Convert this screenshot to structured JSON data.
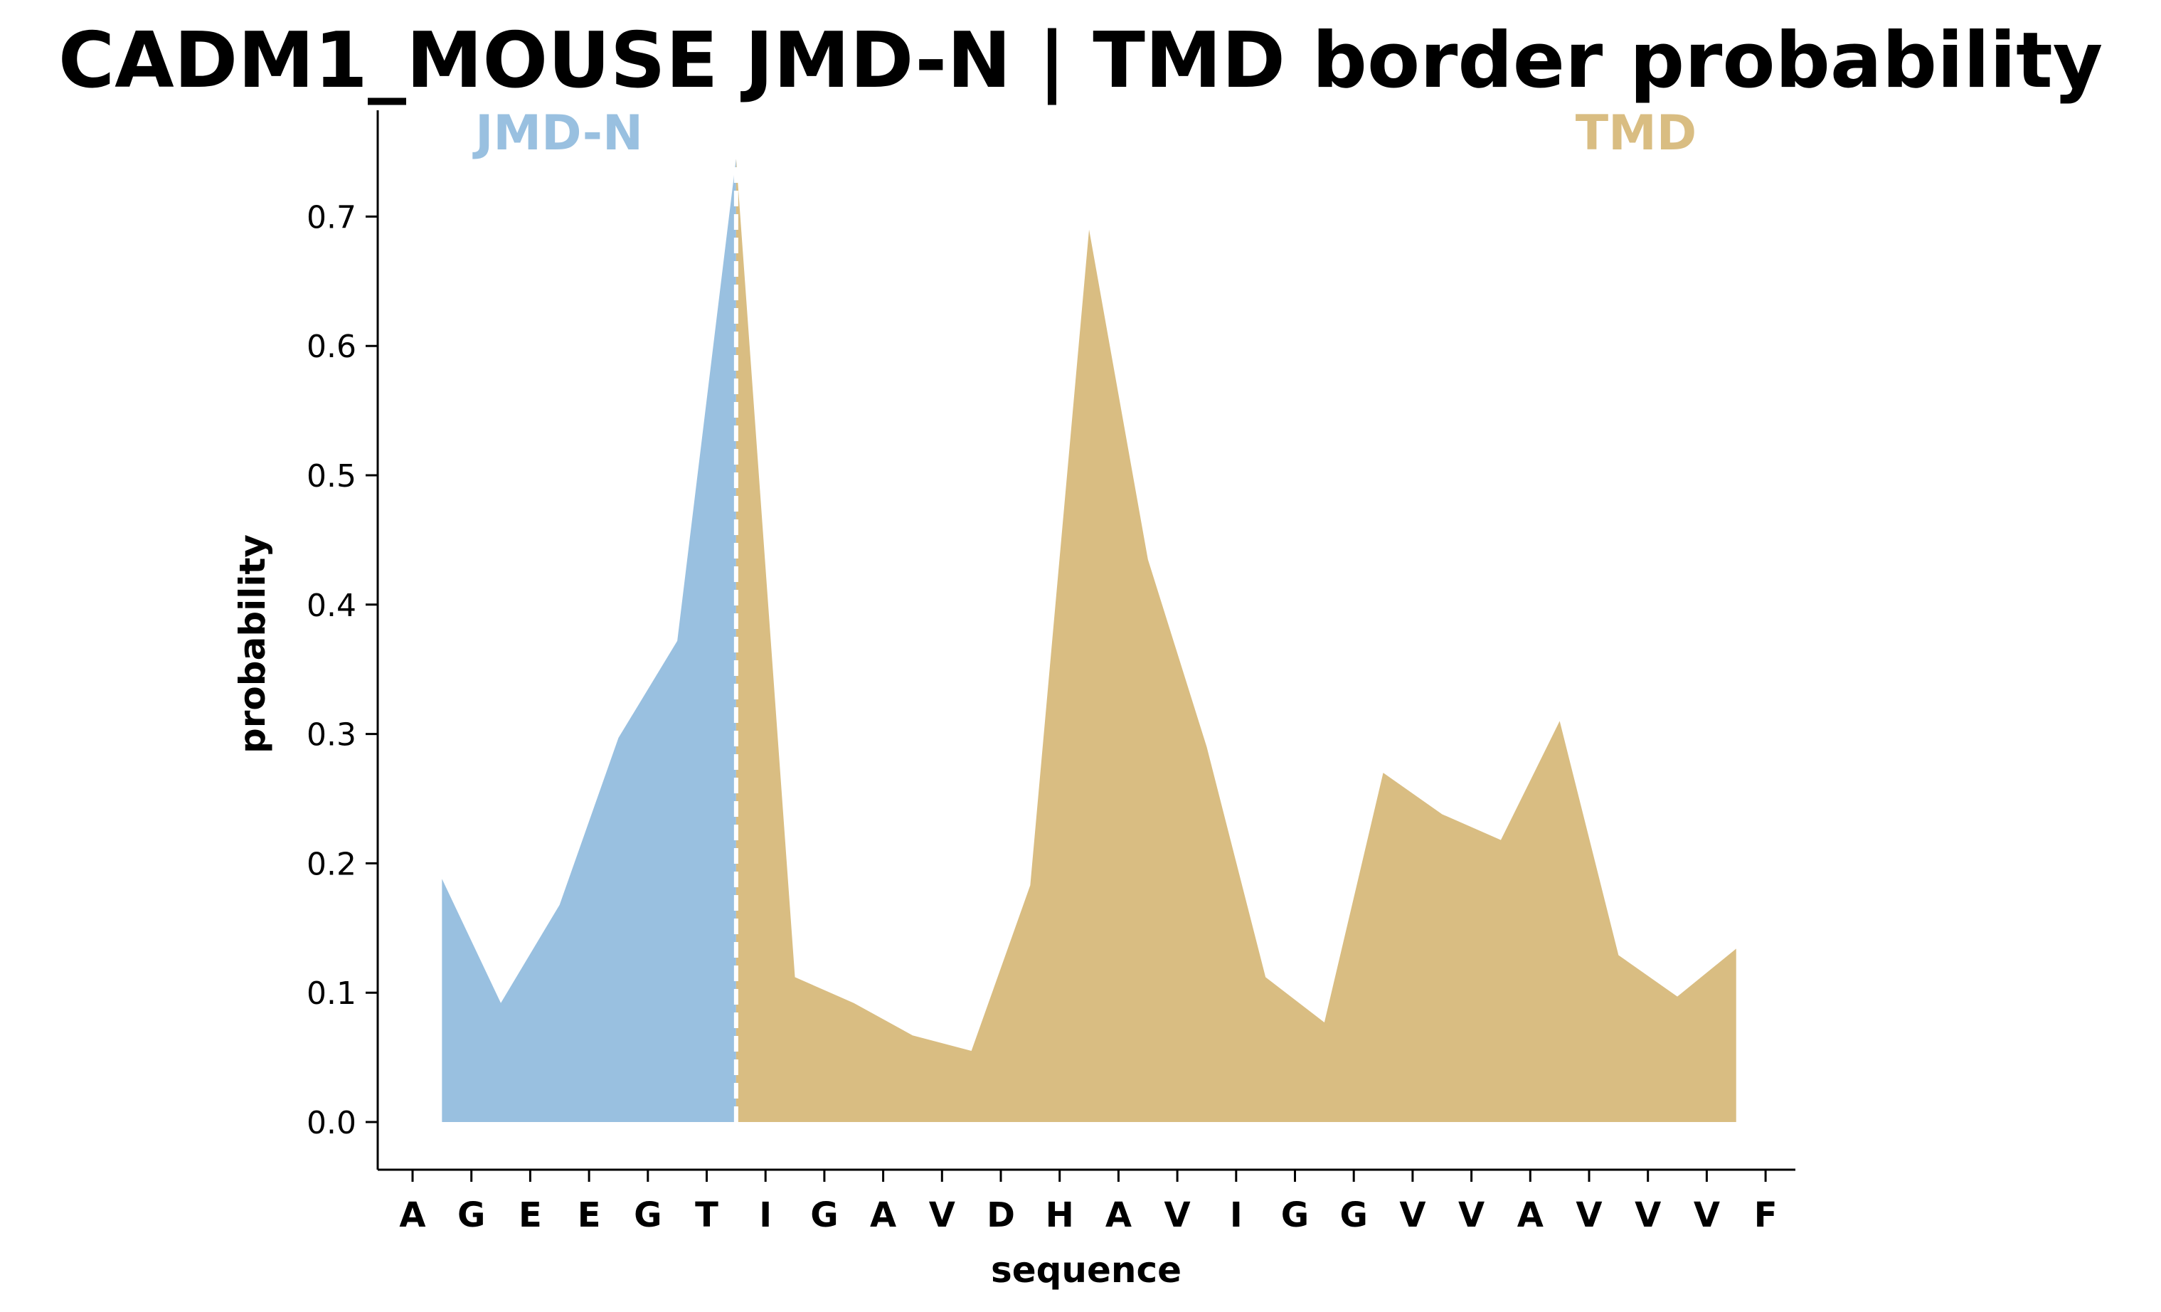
{
  "chart_data": {
    "type": "area",
    "title": "CADM1_MOUSE JMD-N | TMD border probability",
    "xlabel": "sequence",
    "ylabel": "probability",
    "ylim": [
      -0.036,
      0.78
    ],
    "yticks": [
      0.0,
      0.1,
      0.2,
      0.3,
      0.4,
      0.5,
      0.6,
      0.7
    ],
    "ytick_labels": [
      "0.0",
      "0.1",
      "0.2",
      "0.3",
      "0.4",
      "0.5",
      "0.6",
      "0.7"
    ],
    "sequence": [
      "A",
      "G",
      "E",
      "E",
      "G",
      "T",
      "I",
      "G",
      "A",
      "V",
      "D",
      "H",
      "A",
      "V",
      "I",
      "G",
      "G",
      "V",
      "V",
      "A",
      "V",
      "V",
      "V",
      "F"
    ],
    "x": [
      0.5,
      1.5,
      2.5,
      3.5,
      4.5,
      5.5,
      6.5,
      7.5,
      8.5,
      9.5,
      10.5,
      11.5,
      12.5,
      13.5,
      14.5,
      15.5,
      16.5,
      17.5,
      18.5,
      19.5,
      20.5,
      21.5,
      22.5
    ],
    "values": [
      0.188,
      0.092,
      0.168,
      0.297,
      0.372,
      0.745,
      0.112,
      0.092,
      0.067,
      0.055,
      0.183,
      0.69,
      0.435,
      0.29,
      0.112,
      0.077,
      0.27,
      0.238,
      0.218,
      0.31,
      0.129,
      0.097,
      0.134
    ],
    "border_x": 5.5,
    "series": [
      {
        "name": "JMD-N",
        "color": "#99c0e0",
        "x_range": [
          0.5,
          5.5
        ]
      },
      {
        "name": "TMD",
        "color": "#d9bd82",
        "x_range": [
          5.5,
          22.5
        ]
      }
    ],
    "border_line_color": "#ffffff",
    "grid": false
  }
}
